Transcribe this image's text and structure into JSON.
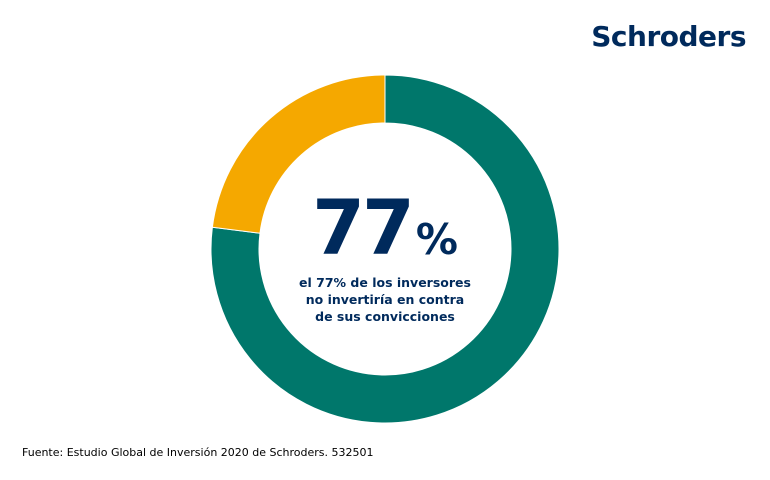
{
  "brand": {
    "logo_text": "Schroders",
    "color": "#002a5c"
  },
  "chart_data": {
    "type": "pie",
    "variant": "donut",
    "slices": [
      {
        "value": 77,
        "color": "#00776b"
      },
      {
        "value": 23,
        "color": "#f5a800"
      }
    ],
    "center_value": "77",
    "center_unit": "%",
    "center_caption": [
      "el 77% de los inversores",
      "no invertiría en contra",
      "de sus convicciones"
    ]
  },
  "footer": {
    "source": "Fuente: Estudio Global de Inversión 2020 de Schroders. 532501"
  }
}
